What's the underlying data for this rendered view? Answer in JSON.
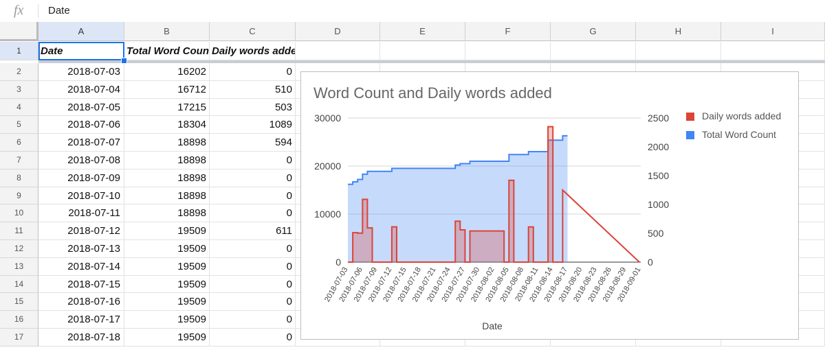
{
  "formula_bar": {
    "icon": "fx",
    "content": "Date"
  },
  "columns": [
    "A",
    "B",
    "C",
    "D",
    "E",
    "F",
    "G",
    "H",
    "I"
  ],
  "rows": [
    {
      "n": "1",
      "a": "Date",
      "b": "Total Word Count",
      "c": "Daily words added"
    },
    {
      "n": "2",
      "a": "2018-07-03",
      "b": "16202",
      "c": "0"
    },
    {
      "n": "3",
      "a": "2018-07-04",
      "b": "16712",
      "c": "510"
    },
    {
      "n": "4",
      "a": "2018-07-05",
      "b": "17215",
      "c": "503"
    },
    {
      "n": "5",
      "a": "2018-07-06",
      "b": "18304",
      "c": "1089"
    },
    {
      "n": "6",
      "a": "2018-07-07",
      "b": "18898",
      "c": "594"
    },
    {
      "n": "7",
      "a": "2018-07-08",
      "b": "18898",
      "c": "0"
    },
    {
      "n": "8",
      "a": "2018-07-09",
      "b": "18898",
      "c": "0"
    },
    {
      "n": "9",
      "a": "2018-07-10",
      "b": "18898",
      "c": "0"
    },
    {
      "n": "10",
      "a": "2018-07-11",
      "b": "18898",
      "c": "0"
    },
    {
      "n": "11",
      "a": "2018-07-12",
      "b": "19509",
      "c": "611"
    },
    {
      "n": "12",
      "a": "2018-07-13",
      "b": "19509",
      "c": "0"
    },
    {
      "n": "13",
      "a": "2018-07-14",
      "b": "19509",
      "c": "0"
    },
    {
      "n": "14",
      "a": "2018-07-15",
      "b": "19509",
      "c": "0"
    },
    {
      "n": "15",
      "a": "2018-07-16",
      "b": "19509",
      "c": "0"
    },
    {
      "n": "16",
      "a": "2018-07-17",
      "b": "19509",
      "c": "0"
    },
    {
      "n": "17",
      "a": "2018-07-18",
      "b": "19509",
      "c": "0"
    }
  ],
  "chart_data": {
    "type": "area",
    "title": "Word Count and Daily words added",
    "xlabel": "Date",
    "ylabel": "",
    "ylim": [
      0,
      30000
    ],
    "ylim_right": [
      0,
      2500
    ],
    "yticks_left": [
      "0",
      "10000",
      "20000",
      "30000"
    ],
    "yticks_right": [
      "0",
      "500",
      "1000",
      "1500",
      "2000",
      "2500"
    ],
    "legend_position": "right",
    "x_tick_labels": [
      "2018-07-03",
      "2018-07-06",
      "2018-07-09",
      "2018-07-12",
      "2018-07-15",
      "2018-07-18",
      "2018-07-21",
      "2018-07-24",
      "2018-07-27",
      "2018-07-30",
      "2018-08-02",
      "2018-08-05",
      "2018-08-08",
      "2018-08-11",
      "2018-08-14",
      "2018-08-17",
      "2018-08-20",
      "2018-08-23",
      "2018-08-26",
      "2018-08-29",
      "2018-09-01"
    ],
    "series": [
      {
        "name": "Daily words added",
        "color": "#db4437",
        "axis": "right",
        "x": [
          "2018-07-03",
          "2018-07-04",
          "2018-07-05",
          "2018-07-06",
          "2018-07-07",
          "2018-07-08",
          "2018-07-11",
          "2018-07-12",
          "2018-07-13",
          "2018-07-24",
          "2018-07-25",
          "2018-07-26",
          "2018-07-27",
          "2018-07-28",
          "2018-08-04",
          "2018-08-05",
          "2018-08-06",
          "2018-08-08",
          "2018-08-09",
          "2018-08-10",
          "2018-08-12",
          "2018-08-13",
          "2018-08-14",
          "2018-08-15",
          "2018-08-16"
        ],
        "values": [
          0,
          510,
          503,
          1089,
          594,
          0,
          0,
          611,
          0,
          0,
          710,
          560,
          0,
          540,
          0,
          1420,
          0,
          0,
          610,
          0,
          0,
          2350,
          0,
          0,
          1250
        ]
      },
      {
        "name": "Total Word Count",
        "color": "#4285f4",
        "axis": "left",
        "x": [
          "2018-07-03",
          "2018-07-04",
          "2018-07-05",
          "2018-07-06",
          "2018-07-07",
          "2018-07-12",
          "2018-07-25",
          "2018-07-26",
          "2018-07-28",
          "2018-08-05",
          "2018-08-09",
          "2018-08-13",
          "2018-08-16",
          "2018-08-17"
        ],
        "values": [
          16202,
          16712,
          17215,
          18304,
          18898,
          19509,
          20219,
          20500,
          21000,
          22400,
          23000,
          25400,
          26300,
          26300
        ]
      }
    ]
  }
}
